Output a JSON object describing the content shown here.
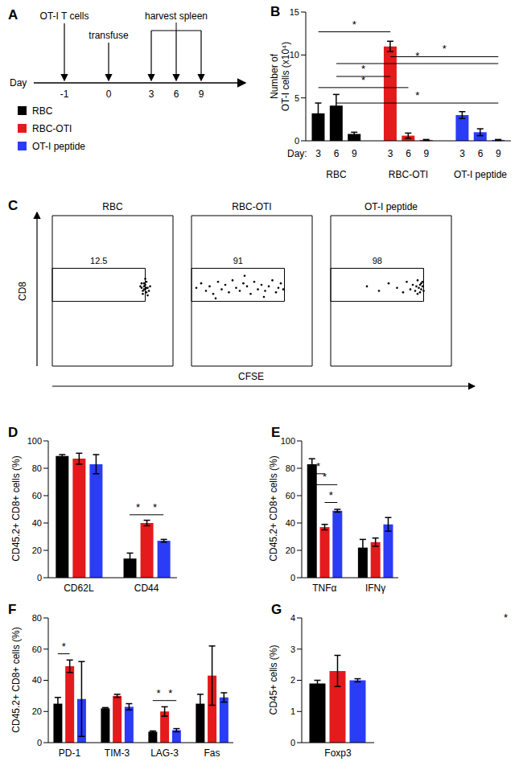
{
  "diagram": {
    "panel": "A",
    "axis_label": "Day",
    "days": [
      -1,
      0,
      3,
      6,
      9
    ],
    "events": [
      {
        "label": "OT-I T cells",
        "day": -1
      },
      {
        "label": "transfuse",
        "day": 0
      },
      {
        "label": "harvest spleen",
        "days": [
          3,
          6,
          9
        ]
      }
    ],
    "legend_entries": [
      {
        "name": "RBC",
        "color": "#000000"
      },
      {
        "name": "RBC-OTI",
        "color": "#e41a1c"
      },
      {
        "name": "OT-I peptide",
        "color": "#2a3cf5"
      }
    ]
  },
  "chart_data": [
    {
      "panel": "B",
      "type": "bar",
      "y_label": [
        "Number of",
        "OT-I cells (x10⁴)"
      ],
      "x_label": "Day:",
      "categories": [
        "3",
        "6",
        "9",
        "3",
        "6",
        "9",
        "3",
        "6",
        "9"
      ],
      "groups": [
        "RBC",
        "RBC",
        "RBC",
        "RBC-OTI",
        "RBC-OTI",
        "RBC-OTI",
        "OT-I peptide",
        "OT-I peptide",
        "OT-I peptide"
      ],
      "values": [
        3.2,
        4.1,
        0.8,
        11,
        0.6,
        0.1,
        3.0,
        1.0,
        0.1
      ],
      "errors": [
        1.2,
        1.3,
        0.2,
        0.6,
        0.3,
        0.05,
        0.4,
        0.4,
        0.05
      ],
      "colors": [
        "#000000",
        "#000000",
        "#000000",
        "#e41a1c",
        "#e41a1c",
        "#e41a1c",
        "#2a3cf5",
        "#2a3cf5",
        "#2a3cf5"
      ],
      "ylim": [
        0,
        15
      ],
      "yticks": [
        0,
        5,
        10,
        15
      ],
      "significance": [
        {
          "from": 0,
          "to": 3,
          "y": 12.7,
          "label": "*"
        },
        {
          "from": 3,
          "to": 8,
          "y": 9.8,
          "label": "*"
        },
        {
          "from": 1,
          "to": 8,
          "y": 9.0,
          "label": "*"
        },
        {
          "from": 1,
          "to": 3,
          "y": 7.5,
          "label": "*"
        },
        {
          "from": 0,
          "to": 4,
          "y": 6.2,
          "label": "*"
        },
        {
          "from": 1,
          "to": 8,
          "y": 4.4,
          "label": "*"
        }
      ]
    },
    {
      "panel": "C",
      "type": "scatter",
      "x_label": "CFSE",
      "y_label": "CD8",
      "xlim": [
        0,
        100
      ],
      "ylim": [
        0,
        100
      ],
      "tick_labels": false,
      "plots": [
        {
          "title": "RBC",
          "gate": {
            "x": [
              0,
              77
            ],
            "y": [
              43,
              65
            ],
            "value": 12.5
          },
          "x": [
            74,
            75,
            76,
            77,
            78,
            76,
            79,
            75,
            77,
            78,
            80,
            76,
            73,
            79,
            77,
            74,
            81,
            78
          ],
          "values": [
            52,
            50,
            53,
            51,
            49,
            55,
            52,
            48,
            54,
            56,
            50,
            51,
            53,
            47,
            58,
            55,
            53,
            52
          ]
        },
        {
          "title": "RBC-OTI",
          "gate": {
            "x": [
              0,
              77
            ],
            "y": [
              43,
              65
            ],
            "value": 91
          },
          "x": [
            4,
            8,
            12,
            15,
            18,
            22,
            25,
            28,
            31,
            34,
            37,
            40,
            43,
            46,
            49,
            52,
            55,
            58,
            61,
            64,
            67,
            70,
            72,
            74,
            76,
            20,
            44,
            60
          ],
          "values": [
            52,
            55,
            50,
            53,
            48,
            56,
            51,
            54,
            49,
            57,
            52,
            50,
            55,
            53,
            48,
            56,
            51,
            54,
            50,
            53,
            57,
            49,
            52,
            55,
            51,
            45,
            60,
            46
          ]
        },
        {
          "title": "OT-I peptide",
          "gate": {
            "x": [
              0,
              77
            ],
            "y": [
              43,
              65
            ],
            "value": 98
          },
          "x": [
            30,
            40,
            48,
            55,
            60,
            63,
            66,
            68,
            70,
            71,
            72,
            73,
            74,
            75,
            75,
            76,
            77,
            76,
            74,
            72
          ],
          "values": [
            53,
            50,
            55,
            52,
            49,
            56,
            51,
            54,
            50,
            53,
            57,
            52,
            49,
            55,
            51,
            53,
            50,
            56,
            54,
            48
          ]
        }
      ]
    },
    {
      "panel": "D",
      "type": "bar",
      "y_label": "CD45.2+ CD8+ cells (%)",
      "categories": [
        "CD62L",
        "CD44"
      ],
      "series": [
        {
          "color": "#000000",
          "values": [
            89,
            14
          ],
          "errors": [
            1,
            4
          ]
        },
        {
          "color": "#e41a1c",
          "values": [
            87,
            40
          ],
          "errors": [
            4,
            2
          ]
        },
        {
          "color": "#2a3cf5",
          "values": [
            83,
            27
          ],
          "errors": [
            7,
            1
          ]
        }
      ],
      "ylim": [
        0,
        100
      ],
      "yticks": [
        0,
        20,
        40,
        60,
        80,
        100
      ],
      "significance": [
        {
          "category": 1,
          "from": 0,
          "to": 1,
          "y": 46,
          "label": "*"
        },
        {
          "category": 1,
          "from": 1,
          "to": 2,
          "y": 46,
          "label": "*"
        }
      ]
    },
    {
      "panel": "E",
      "type": "bar",
      "y_label": "CD45.2+ CD8+ cells (%)",
      "categories": [
        "TNFα",
        "IFNγ"
      ],
      "series": [
        {
          "color": "#000000",
          "values": [
            83,
            22
          ],
          "errors": [
            4,
            6
          ]
        },
        {
          "color": "#e41a1c",
          "values": [
            37,
            26
          ],
          "errors": [
            2,
            3
          ]
        },
        {
          "color": "#2a3cf5",
          "values": [
            49,
            39
          ],
          "errors": [
            1,
            5
          ]
        }
      ],
      "ylim": [
        0,
        100
      ],
      "yticks": [
        0,
        20,
        40,
        60,
        80,
        100
      ],
      "significance": [
        {
          "category": 0,
          "from": 0,
          "to": 1,
          "y": 76,
          "label": "*"
        },
        {
          "category": 0,
          "from": 0,
          "to": 2,
          "y": 68,
          "label": "*"
        },
        {
          "category": 0,
          "from": 1,
          "to": 2,
          "y": 55,
          "label": "*"
        }
      ]
    },
    {
      "panel": "F",
      "type": "bar",
      "y_label": "CD45.2+ CD8+ cells (%)",
      "categories": [
        "PD-1",
        "TIM-3",
        "LAG-3",
        "Fas"
      ],
      "series": [
        {
          "color": "#000000",
          "values": [
            25,
            22,
            7,
            25
          ],
          "errors": [
            4,
            0.5,
            0.5,
            6
          ]
        },
        {
          "color": "#e41a1c",
          "values": [
            49,
            30,
            20,
            43
          ],
          "errors": [
            4,
            1,
            3,
            19
          ]
        },
        {
          "color": "#2a3cf5",
          "values": [
            28,
            23,
            8,
            29
          ],
          "errors": [
            24,
            2,
            1,
            3
          ]
        }
      ],
      "ylim": [
        0,
        80
      ],
      "yticks": [
        0,
        20,
        40,
        60,
        80
      ],
      "significance": [
        {
          "category": 0,
          "from": 0,
          "to": 1,
          "y": 57,
          "label": "*"
        },
        {
          "category": 2,
          "from": 0,
          "to": 1,
          "y": 27,
          "label": "*"
        },
        {
          "category": 2,
          "from": 1,
          "to": 2,
          "y": 27,
          "label": "*"
        }
      ]
    },
    {
      "panel": "G",
      "type": "bar",
      "y_label": "CD45+ cells (%)",
      "categories": [
        "Foxp3"
      ],
      "series": [
        {
          "color": "#000000",
          "values": [
            1.9
          ],
          "errors": [
            0.1
          ]
        },
        {
          "color": "#e41a1c",
          "values": [
            2.3
          ],
          "errors": [
            0.5
          ]
        },
        {
          "color": "#2a3cf5",
          "values": [
            2.0
          ],
          "errors": [
            0.05
          ]
        }
      ],
      "ylim": [
        0,
        4
      ],
      "yticks": [
        0,
        1,
        2,
        3,
        4
      ],
      "annotations": [
        "*"
      ]
    }
  ]
}
